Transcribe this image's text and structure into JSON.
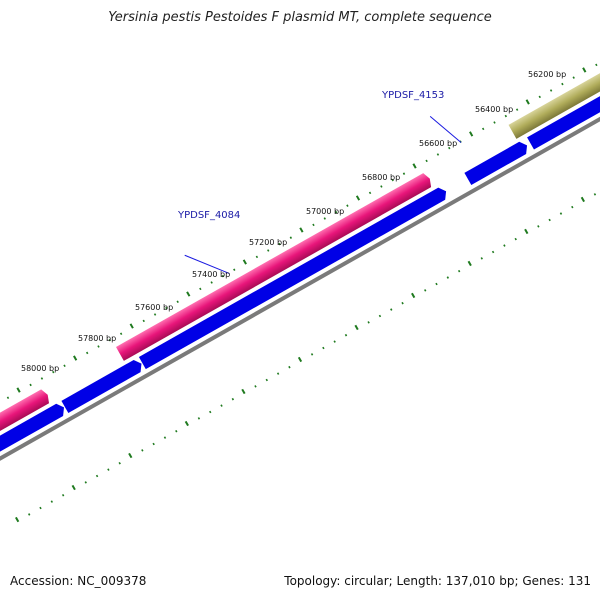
{
  "title": "Yersinia pestis Pestoides F plasmid MT, complete sequence",
  "accession_text": "Accession: NC_009378",
  "summary_text": "Topology: circular; Length: 137,010 bp; Genes: 131",
  "ruler_labels": [
    "56200 bp",
    "56400 bp",
    "56600 bp",
    "56800 bp",
    "57000 bp",
    "57200 bp",
    "57400 bp",
    "57600 bp",
    "57800 bp",
    "58000 bp"
  ],
  "gene_labels": [
    "YPDSF_4153",
    "YPDSF_4084"
  ],
  "colors": {
    "tick": "#1f7a1f",
    "backbone": "#7a7a7a",
    "cds_blue": "#0000e6",
    "gene_pink": "#e8157a",
    "gene_olive": "#b0ac5a",
    "label_line": "#1a1ae0"
  }
}
